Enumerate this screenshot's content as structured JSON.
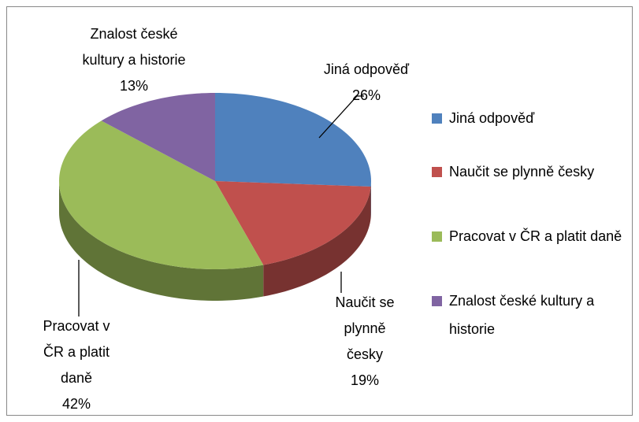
{
  "chart_data": {
    "type": "pie",
    "categories": [
      "Jiná odpověď",
      "Naučit se plynně česky",
      "Pracovat v ČR a platit daně",
      "Znalost české kultury a historie"
    ],
    "values": [
      26,
      19,
      42,
      13
    ],
    "value_labels": [
      "26%",
      "19%",
      "42%",
      "13%"
    ],
    "colors": [
      "#4f81bd",
      "#c0504d",
      "#9bbb59",
      "#8064a2"
    ],
    "legend": "right"
  }
}
